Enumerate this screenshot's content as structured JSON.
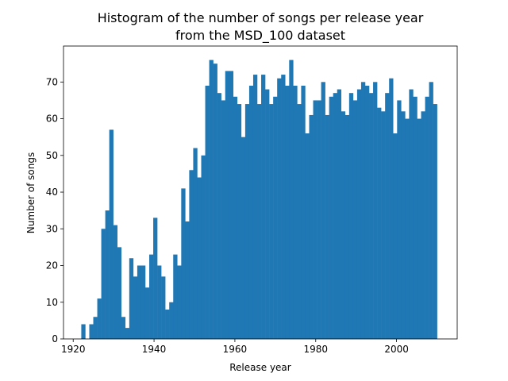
{
  "chart_data": {
    "type": "bar",
    "title_line1": "Histogram of the number of songs per release year",
    "title_line2": "from the MSD_100 dataset",
    "xlabel": "Release year",
    "ylabel": "Number of songs",
    "xlim": [
      1917.6,
      2015.0
    ],
    "ylim": [
      0,
      79.8
    ],
    "xticks": [
      1920,
      1940,
      1960,
      1980,
      2000
    ],
    "yticks": [
      0,
      10,
      20,
      30,
      40,
      50,
      60,
      70
    ],
    "bar_color": "#1f77b4",
    "grid": false,
    "bins": {
      "start": 1922.0,
      "width": 0.989,
      "counts": [
        4,
        0,
        4,
        6,
        11,
        30,
        35,
        57,
        31,
        25,
        6,
        3,
        22,
        17,
        20,
        20,
        14,
        23,
        33,
        20,
        17,
        8,
        10,
        23,
        20,
        41,
        32,
        46,
        52,
        44,
        50,
        69,
        76,
        75,
        67,
        65,
        73,
        73,
        66,
        64,
        55,
        64,
        69,
        72,
        64,
        72,
        68,
        64,
        66,
        71,
        72,
        69,
        76,
        69,
        64,
        69,
        56,
        61,
        65,
        65,
        70,
        61,
        66,
        67,
        68,
        62,
        61,
        67,
        65,
        68,
        70,
        69,
        67,
        70,
        63,
        62,
        67,
        71,
        56,
        65,
        62,
        60,
        68,
        66,
        60,
        62,
        66,
        70,
        64
      ]
    }
  }
}
